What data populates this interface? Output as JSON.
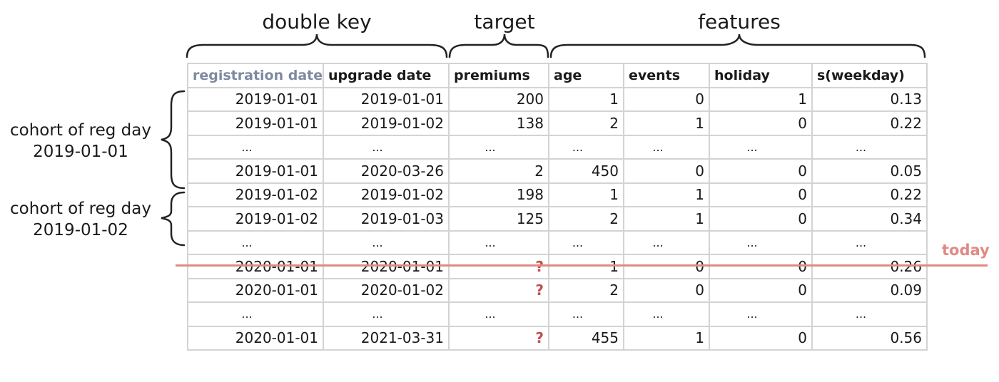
{
  "groups": {
    "key_label": "double key",
    "target_label": "target",
    "features_label": "features"
  },
  "table": {
    "headers": [
      "registration date",
      "upgrade date",
      "premiums",
      "age",
      "events",
      "holiday",
      "s(weekday)"
    ],
    "rows": [
      [
        "2019-01-01",
        "2019-01-01",
        "200",
        "1",
        "0",
        "1",
        "0.13"
      ],
      [
        "2019-01-01",
        "2019-01-02",
        "138",
        "2",
        "1",
        "0",
        "0.22"
      ],
      [
        "...",
        "...",
        "...",
        "...",
        "...",
        "...",
        "..."
      ],
      [
        "2019-01-01",
        "2020-03-26",
        "2",
        "450",
        "0",
        "0",
        "0.05"
      ],
      [
        "2019-01-02",
        "2019-01-02",
        "198",
        "1",
        "1",
        "0",
        "0.22"
      ],
      [
        "2019-01-02",
        "2019-01-03",
        "125",
        "2",
        "1",
        "0",
        "0.34"
      ],
      [
        "...",
        "...",
        "...",
        "...",
        "...",
        "...",
        "..."
      ],
      [
        "2020-01-01",
        "2020-01-01",
        "?",
        "1",
        "0",
        "0",
        "0.26"
      ],
      [
        "2020-01-01",
        "2020-01-02",
        "?",
        "2",
        "0",
        "0",
        "0.09"
      ],
      [
        "...",
        "...",
        "...",
        "...",
        "...",
        "...",
        "..."
      ],
      [
        "2020-01-01",
        "2021-03-31",
        "?",
        "455",
        "1",
        "0",
        "0.56"
      ]
    ]
  },
  "cohorts": [
    {
      "line1": "cohort of reg day",
      "line2": "2019-01-01"
    },
    {
      "line1": "cohort of reg day",
      "line2": "2019-01-02"
    }
  ],
  "today_label": "today",
  "colors": {
    "today": "#e08a85",
    "unknown": "#c0504d",
    "muted_header": "#7d8aa0",
    "grid": "#d3d3d3"
  }
}
